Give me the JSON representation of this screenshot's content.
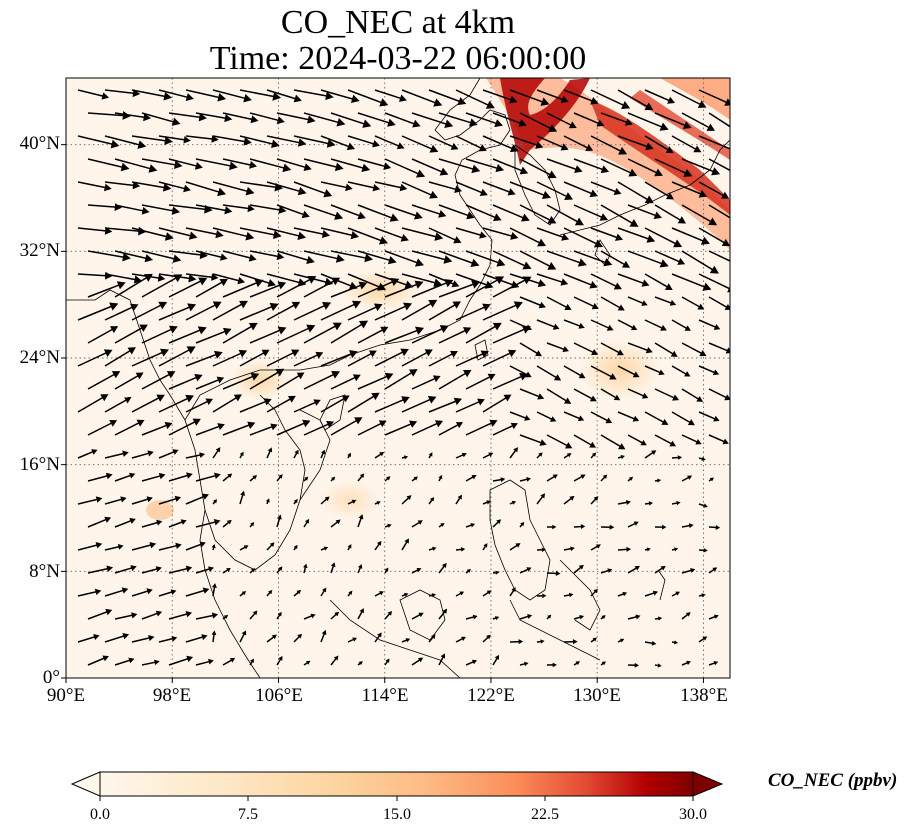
{
  "title": {
    "line1": "CO_NEC at 4km",
    "line2": "Time: 2024-03-22 06:00:00"
  },
  "map": {
    "lon_range": [
      90,
      140
    ],
    "lat_range": [
      0,
      45
    ],
    "x_ticks": [
      "90°E",
      "98°E",
      "106°E",
      "114°E",
      "122°E",
      "130°E",
      "138°E"
    ],
    "y_ticks": [
      "0°",
      "8°N",
      "16°N",
      "24°N",
      "32°N",
      "40°N"
    ],
    "gridlines": "dotted",
    "overlay": "wind vectors (black arrows)",
    "field_colors": {
      "low": "#fff5eb",
      "mid": "#fdae6b",
      "high": "#7f0000"
    }
  },
  "colorbar": {
    "label": "CO_NEC (ppbv)",
    "ticks": [
      "0.0",
      "7.5",
      "15.0",
      "22.5",
      "30.0"
    ],
    "range": [
      0,
      30
    ],
    "colormap": "OrRd",
    "extend": "both"
  }
}
